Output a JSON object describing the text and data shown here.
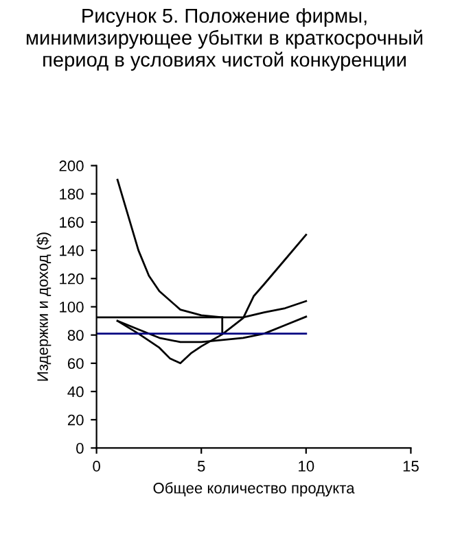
{
  "chart_data": {
    "type": "line",
    "title": "Рисунок 5. Положение фирмы, минимизирующее убытки в краткосрочный период в условиях чистой конкуренции",
    "xlabel": "Общее количество продукта",
    "ylabel": "Издержки и доход ($)",
    "series": [
      {
        "color": "#000000",
        "x": [
          1,
          2,
          2.5,
          3,
          4,
          5,
          6,
          7,
          8,
          9,
          10
        ],
        "values": [
          190,
          140,
          122,
          111,
          98,
          94,
          92.5,
          92.5,
          96,
          99,
          104
        ]
      },
      {
        "color": "#000000",
        "x": [
          1,
          2,
          3,
          4,
          5,
          6,
          7,
          8,
          9,
          10
        ],
        "values": [
          90,
          84,
          78,
          75,
          75,
          76.5,
          78,
          81,
          87,
          93
        ]
      },
      {
        "color": "#000000",
        "x": [
          1,
          2,
          3,
          3.5,
          4,
          4.5,
          5,
          6,
          7,
          7.5,
          8,
          9,
          10
        ],
        "values": [
          90,
          81,
          71,
          63.5,
          60,
          67,
          72,
          80.5,
          92,
          107.5,
          116,
          133.5,
          151
        ]
      },
      {
        "color": "#000000",
        "x": [
          0,
          6
        ],
        "values": [
          92.5,
          92.5
        ]
      },
      {
        "color": "#000000",
        "x": [
          6,
          6
        ],
        "values": [
          81,
          92.5
        ]
      },
      {
        "color": "#000080",
        "x": [
          0,
          10
        ],
        "values": [
          81,
          81
        ]
      }
    ],
    "xlim": [
      0,
      15
    ],
    "xticks": [
      0,
      5,
      10,
      15
    ],
    "ylim": [
      0,
      200
    ],
    "yticks": [
      0,
      20,
      40,
      60,
      80,
      100,
      120,
      140,
      160,
      180,
      200
    ],
    "grid": false,
    "legend": false,
    "marker": "none",
    "line_style": "solid"
  }
}
